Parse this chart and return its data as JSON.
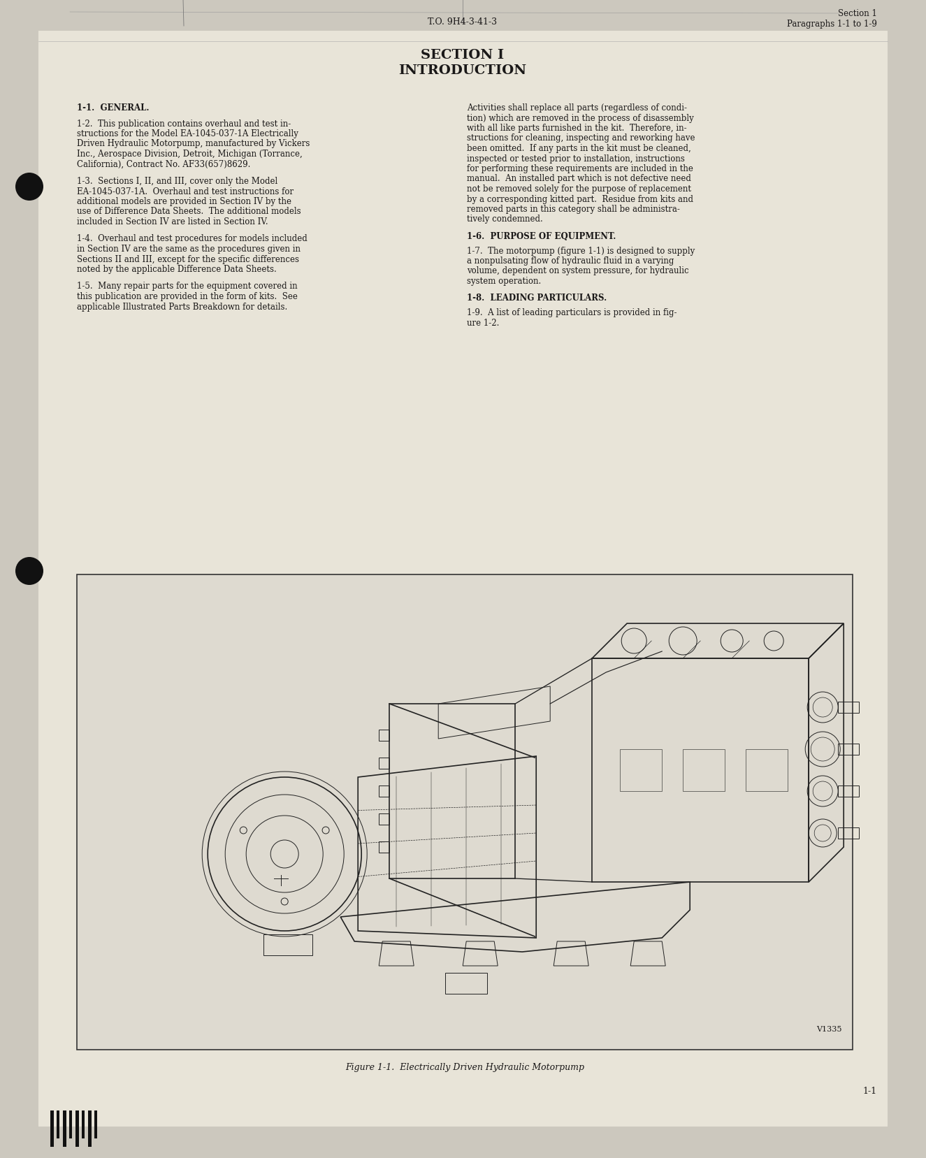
{
  "page_bg": "#ccc8be",
  "inner_bg": "#e8e4d8",
  "header_left": "T.O. 9H4-3-41-3",
  "header_right_line1": "Section 1",
  "header_right_line2": "Paragraphs 1-1 to 1-9",
  "section_title_line1": "SECTION I",
  "section_title_line2": "INTRODUCTION",
  "para_11": "1-1.  GENERAL.",
  "para_12_lines": [
    "1-2.  This publication contains overhaul and test in-",
    "structions for the Model EA-1045-037-1A Electrically",
    "Driven Hydraulic Motorpump, manufactured by Vickers",
    "Inc., Aerospace Division, Detroit, Michigan (Torrance,",
    "California), Contract No. AF33(657)8629."
  ],
  "para_13_lines": [
    "1-3.  Sections I, II, and III, cover only the Model",
    "EA-1045-037-1A.  Overhaul and test instructions for",
    "additional models are provided in Section IV by the",
    "use of Difference Data Sheets.  The additional models",
    "included in Section IV are listed in Section IV."
  ],
  "para_14_lines": [
    "1-4.  Overhaul and test procedures for models included",
    "in Section IV are the same as the procedures given in",
    "Sections II and III, except for the specific differences",
    "noted by the applicable Difference Data Sheets."
  ],
  "para_15_lines": [
    "1-5.  Many repair parts for the equipment covered in",
    "this publication are provided in the form of kits.  See",
    "applicable Illustrated Parts Breakdown for details."
  ],
  "para_activities_lines": [
    "Activities shall replace all parts (regardless of condi-",
    "tion) which are removed in the process of disassembly",
    "with all like parts furnished in the kit.  Therefore, in-",
    "structions for cleaning, inspecting and reworking have",
    "been omitted.  If any parts in the kit must be cleaned,",
    "inspected or tested prior to installation, instructions",
    "for performing these requirements are included in the",
    "manual.  An installed part which is not defective need",
    "not be removed solely for the purpose of replacement",
    "by a corresponding kitted part.  Residue from kits and",
    "removed parts in this category shall be administra-",
    "tively condemned."
  ],
  "para_16": "1-6.  PURPOSE OF EQUIPMENT.",
  "para_17_lines": [
    "1-7.  The motorpump (figure 1-1) is designed to supply",
    "a nonpulsating flow of hydraulic fluid in a varying",
    "volume, dependent on system pressure, for hydraulic",
    "system operation."
  ],
  "para_18": "1-8.  LEADING PARTICULARS.",
  "para_19_lines": [
    "1-9.  A list of leading particulars is provided in fig-",
    "ure 1-2."
  ],
  "figure_caption": "Figure 1-1.  Electrically Driven Hydraulic Motorpump",
  "figure_label": "V1335",
  "page_number": "1-1",
  "text_color": "#1a1818",
  "fig_box_color": "#dedad0"
}
